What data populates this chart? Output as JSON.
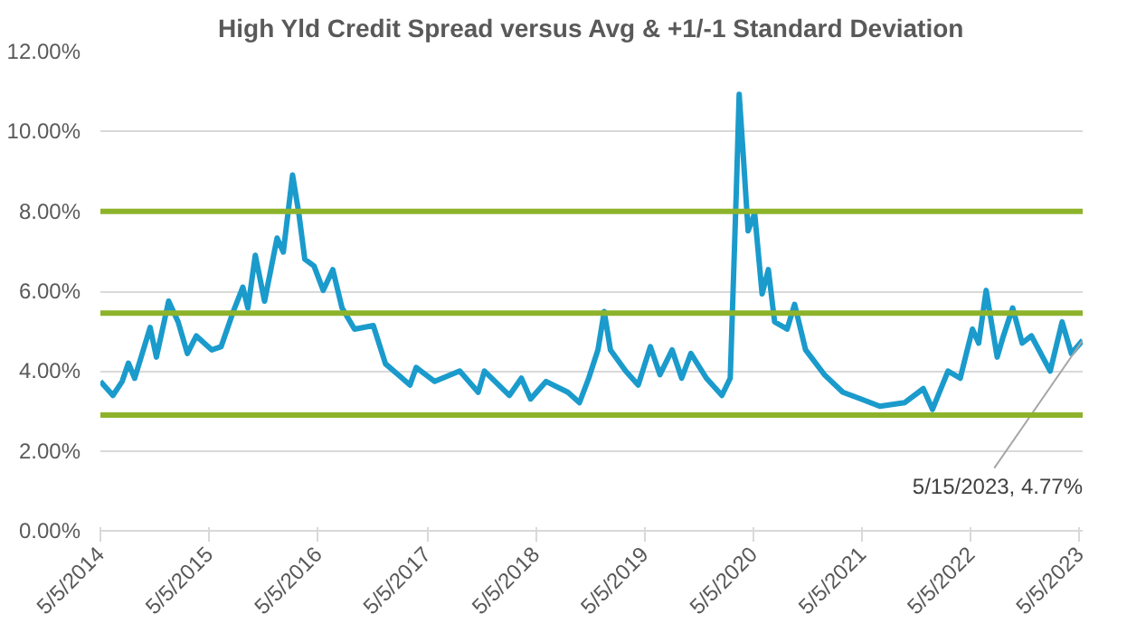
{
  "chart_data": {
    "type": "line",
    "title": "High Yld Credit Spread versus Avg & +1/-1 Standard Deviation",
    "x": [
      "2014-05-05",
      "2014-06-16",
      "2014-07-17",
      "2014-08-07",
      "2014-08-28",
      "2014-10-19",
      "2014-11-09",
      "2014-12-20",
      "2015-01-21",
      "2015-02-21",
      "2015-03-23",
      "2015-05-14",
      "2015-06-14",
      "2015-07-25",
      "2015-08-26",
      "2015-09-12",
      "2015-10-07",
      "2015-11-07",
      "2015-12-19",
      "2016-01-09",
      "2016-02-09",
      "2016-03-01",
      "2016-03-21",
      "2016-04-21",
      "2016-05-22",
      "2016-06-23",
      "2016-07-24",
      "2016-09-04",
      "2016-11-06",
      "2016-12-17",
      "2017-01-28",
      "2017-03-09",
      "2017-03-30",
      "2017-05-31",
      "2017-08-23",
      "2017-10-24",
      "2017-11-14",
      "2018-02-06",
      "2018-03-18",
      "2018-04-18",
      "2018-06-09",
      "2018-08-21",
      "2018-09-29",
      "2018-10-30",
      "2018-11-30",
      "2018-12-21",
      "2019-01-11",
      "2019-03-03",
      "2019-04-14",
      "2019-05-25",
      "2019-06-26",
      "2019-08-06",
      "2019-09-07",
      "2019-10-08",
      "2019-11-29",
      "2020-01-20",
      "2020-02-17",
      "2020-03-08",
      "2020-03-18",
      "2020-04-02",
      "2020-04-17",
      "2020-05-09",
      "2020-06-03",
      "2020-06-24",
      "2020-07-15",
      "2020-08-26",
      "2020-09-20",
      "2020-10-27",
      "2020-12-29",
      "2021-03-01",
      "2021-05-01",
      "2021-07-03",
      "2021-09-25",
      "2021-11-26",
      "2021-12-27",
      "2022-02-17",
      "2022-03-30",
      "2022-05-10",
      "2022-05-31",
      "2022-06-25",
      "2022-08-01",
      "2022-08-22",
      "2022-09-22",
      "2022-10-24",
      "2022-11-24",
      "2023-01-26",
      "2023-03-07",
      "2023-04-07",
      "2023-05-15"
    ],
    "series": [
      {
        "color": "#1a9bcc",
        "values": [
          3.74,
          3.39,
          3.74,
          4.2,
          3.82,
          5.09,
          4.35,
          5.75,
          5.23,
          4.44,
          4.88,
          4.53,
          4.61,
          5.49,
          6.1,
          5.58,
          6.9,
          5.75,
          7.33,
          6.98,
          8.91,
          7.95,
          6.8,
          6.63,
          6.02,
          6.54,
          5.58,
          5.05,
          5.14,
          4.18,
          3.91,
          3.65,
          4.09,
          3.74,
          4.0,
          3.47,
          4.0,
          3.39,
          3.82,
          3.3,
          3.74,
          3.47,
          3.21,
          3.82,
          4.53,
          5.49,
          4.53,
          4.0,
          3.65,
          4.61,
          3.91,
          4.53,
          3.82,
          4.44,
          3.82,
          3.39,
          3.82,
          8.39,
          10.93,
          9.26,
          7.51,
          7.95,
          5.93,
          6.54,
          5.23,
          5.05,
          5.67,
          4.53,
          3.91,
          3.47,
          3.3,
          3.12,
          3.21,
          3.56,
          3.04,
          4.0,
          3.82,
          5.05,
          4.7,
          6.02,
          4.35,
          4.88,
          5.58,
          4.7,
          4.88,
          4.0,
          5.23,
          4.44,
          4.77
        ]
      }
    ],
    "xlim": [
      "2014-05-05",
      "2023-05-15"
    ],
    "xticks": [
      {
        "value": "2014-05-05",
        "label": "5/5/2014"
      },
      {
        "value": "2015-05-05",
        "label": "5/5/2015"
      },
      {
        "value": "2016-05-05",
        "label": "5/5/2016"
      },
      {
        "value": "2017-05-05",
        "label": "5/5/2017"
      },
      {
        "value": "2018-05-05",
        "label": "5/5/2018"
      },
      {
        "value": "2019-05-05",
        "label": "5/5/2019"
      },
      {
        "value": "2020-05-05",
        "label": "5/5/2020"
      },
      {
        "value": "2021-05-05",
        "label": "5/5/2021"
      },
      {
        "value": "2022-05-05",
        "label": "5/5/2022"
      },
      {
        "value": "2023-05-05",
        "label": "5/5/2023"
      }
    ],
    "ylim": [
      0,
      12
    ],
    "yticks": [
      {
        "value": 0,
        "label": "0.00%"
      },
      {
        "value": 2,
        "label": "2.00%"
      },
      {
        "value": 4,
        "label": "4.00%"
      },
      {
        "value": 6,
        "label": "6.00%"
      },
      {
        "value": 8,
        "label": "8.00%"
      },
      {
        "value": 10,
        "label": "10.00%"
      },
      {
        "value": 12,
        "label": "12.00%"
      }
    ],
    "ref_lines": [
      {
        "axis": "y",
        "value": 8.0,
        "color": "#8db32b"
      },
      {
        "axis": "y",
        "value": 5.45,
        "color": "#8db32b"
      },
      {
        "axis": "y",
        "value": 2.9,
        "color": "#8db32b"
      }
    ],
    "annotations": [
      {
        "text": "5/15/2023, 4.77%",
        "x": "2023-05-15",
        "y": 4.77
      }
    ],
    "grid": "y"
  }
}
